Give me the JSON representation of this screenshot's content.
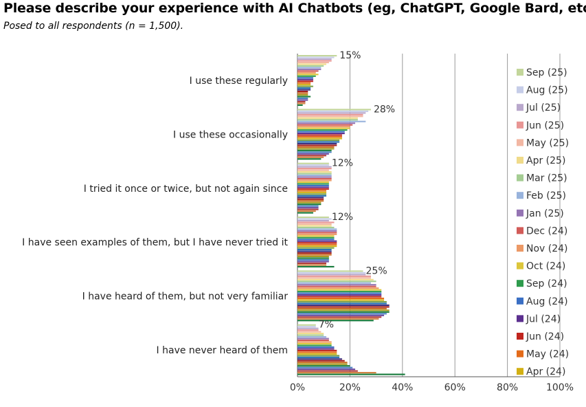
{
  "title": "Please describe your experience with AI Chatbots (eg, ChatGPT, Google Bard, etc).",
  "subtitle": "Posed to all respondents (n = 1,500).",
  "chart_data": {
    "type": "bar",
    "orientation": "horizontal",
    "xlim": [
      0,
      100
    ],
    "x_ticks": [
      "0%",
      "20%",
      "40%",
      "60%",
      "80%",
      "100%"
    ],
    "grid": true,
    "legend_position": "right",
    "categories": [
      "I use these regularly",
      "I use these occasionally",
      "I tried it once or twice, but not again since",
      "I have seen examples of them, but I have never tried it",
      "I have heard of them, but not very familiar",
      "I have never heard of them"
    ],
    "category_labels": [
      "15%",
      "28%",
      "12%",
      "12%",
      "25%",
      "7%"
    ],
    "series": [
      {
        "name": "Sep (25)",
        "color": "#c3d69b",
        "values": [
          15,
          28,
          12,
          12,
          25,
          7
        ]
      },
      {
        "name": "Aug (25)",
        "color": "#c6cde8",
        "values": [
          14,
          27,
          12,
          13,
          26,
          7
        ]
      },
      {
        "name": "Jul (25)",
        "color": "#b9a8cc",
        "values": [
          13,
          26,
          13,
          12,
          26,
          8
        ]
      },
      {
        "name": "Jun (25)",
        "color": "#e89694",
        "values": [
          13,
          25,
          13,
          14,
          28,
          8
        ]
      },
      {
        "name": "May (25)",
        "color": "#f2b7a3",
        "values": [
          12,
          25,
          12,
          13,
          28,
          9
        ]
      },
      {
        "name": "Apr (25)",
        "color": "#f0db8a",
        "values": [
          11,
          23,
          13,
          13,
          29,
          10
        ]
      },
      {
        "name": "Mar (25)",
        "color": "#a5cd93",
        "values": [
          10,
          23,
          13,
          14,
          30,
          10
        ]
      },
      {
        "name": "Feb (25)",
        "color": "#98b3dc",
        "values": [
          9,
          26,
          13,
          15,
          28,
          11
        ]
      },
      {
        "name": "Jan (25)",
        "color": "#9474b3",
        "values": [
          9,
          22,
          13,
          15,
          30,
          12
        ]
      },
      {
        "name": "Dec (24)",
        "color": "#d25b58",
        "values": [
          8,
          21,
          13,
          15,
          30,
          12
        ]
      },
      {
        "name": "Nov (24)",
        "color": "#ec9966",
        "values": [
          7,
          20,
          13,
          15,
          31,
          13
        ]
      },
      {
        "name": "Oct (24)",
        "color": "#dcc63b",
        "values": [
          8,
          20,
          12,
          14,
          32,
          13
        ]
      },
      {
        "name": "Sep (24)",
        "color": "#2e9b4d",
        "values": [
          7,
          19,
          12,
          14,
          32,
          13
        ]
      },
      {
        "name": "Aug (24)",
        "color": "#3a6fc4",
        "values": [
          6,
          18,
          12,
          14,
          32,
          14
        ]
      },
      {
        "name": "Jul (24)",
        "color": "#5b2f8f",
        "values": [
          6,
          18,
          12,
          15,
          32,
          14
        ]
      },
      {
        "name": "Jun (24)",
        "color": "#c0251e",
        "values": [
          6,
          17,
          12,
          15,
          32,
          15
        ]
      },
      {
        "name": "May (24)",
        "color": "#e36b1a",
        "values": [
          5,
          17,
          11,
          15,
          33,
          15
        ]
      },
      {
        "name": "Apr (24)",
        "color": "#d2b013",
        "values": [
          5,
          17,
          11,
          15,
          33,
          15
        ]
      }
    ],
    "extra_bar_colors": [
      "#7aa04a",
      "#1f6bb0",
      "#3b2e7e",
      "#a31c1a",
      "#c96a20",
      "#a69a1f",
      "#1a7d3a",
      "#4a7fc0",
      "#6a4aa0",
      "#b03a3a",
      "#d08040",
      "#157a3a"
    ],
    "extra_bar_values": [
      [
        6,
        16,
        11,
        14,
        34,
        16
      ],
      [
        5,
        16,
        11,
        13,
        34,
        16
      ],
      [
        5,
        15,
        10,
        13,
        35,
        17
      ],
      [
        4,
        15,
        10,
        13,
        35,
        18
      ],
      [
        4,
        14,
        10,
        13,
        34,
        19
      ],
      [
        4,
        14,
        9,
        12,
        35,
        19
      ],
      [
        5,
        13,
        9,
        12,
        35,
        20
      ],
      [
        4,
        13,
        8,
        12,
        34,
        21
      ],
      [
        4,
        12,
        8,
        12,
        33,
        22
      ],
      [
        3,
        11,
        8,
        11,
        32,
        23
      ],
      [
        3,
        10,
        7,
        11,
        31,
        30
      ],
      [
        2,
        9,
        6,
        14,
        29,
        41
      ]
    ]
  }
}
